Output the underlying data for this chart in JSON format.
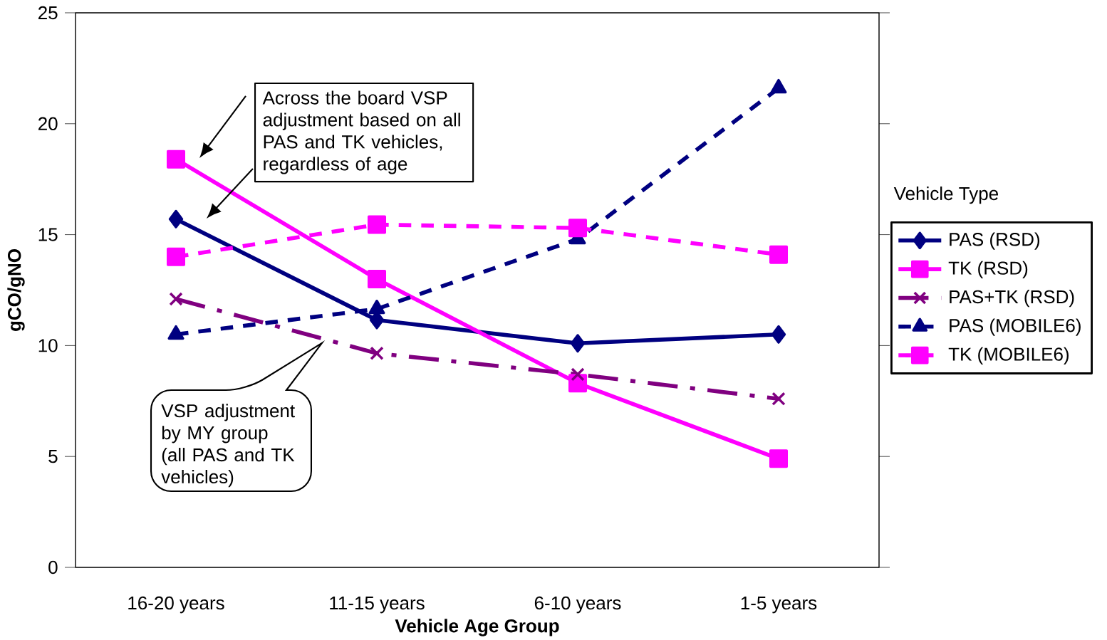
{
  "chart_data": {
    "type": "line",
    "xlabel": "Vehicle Age Group",
    "ylabel": "gCO/gNO",
    "legend_title": "Vehicle Type",
    "categories": [
      "16-20 years",
      "11-15 years",
      "6-10 years",
      "1-5 years"
    ],
    "ylim": [
      0,
      25
    ],
    "yticks": [
      0,
      5,
      10,
      15,
      20,
      25
    ],
    "legend": "right",
    "series": [
      {
        "name": "PAS (RSD)",
        "color": "#000080",
        "marker": "diamond",
        "line_style": "solid",
        "values": [
          15.7,
          11.15,
          10.1,
          10.5
        ]
      },
      {
        "name": "TK (RSD)",
        "color": "#ff00ff",
        "marker": "square",
        "line_style": "solid",
        "values": [
          18.4,
          13.0,
          8.3,
          4.9
        ]
      },
      {
        "name": "PAS+TK (RSD)",
        "color": "#800080",
        "marker": "cross",
        "line_style": "dashdot",
        "values": [
          12.1,
          9.65,
          8.7,
          7.6
        ]
      },
      {
        "name": "PAS (MOBILE6)",
        "color": "#000080",
        "marker": "triangle",
        "line_style": "dashed",
        "values": [
          10.5,
          11.65,
          14.8,
          21.6
        ]
      },
      {
        "name": "TK (MOBILE6)",
        "color": "#ff00ff",
        "marker": "square",
        "line_style": "dashed",
        "values": [
          14.0,
          15.45,
          15.3,
          14.1
        ]
      }
    ],
    "annotations": [
      "Across the board VSP adjustment based on all PAS and TK vehicles, regardless of age",
      "VSP adjustment by MY group (all PAS and TK vehicles)"
    ]
  }
}
